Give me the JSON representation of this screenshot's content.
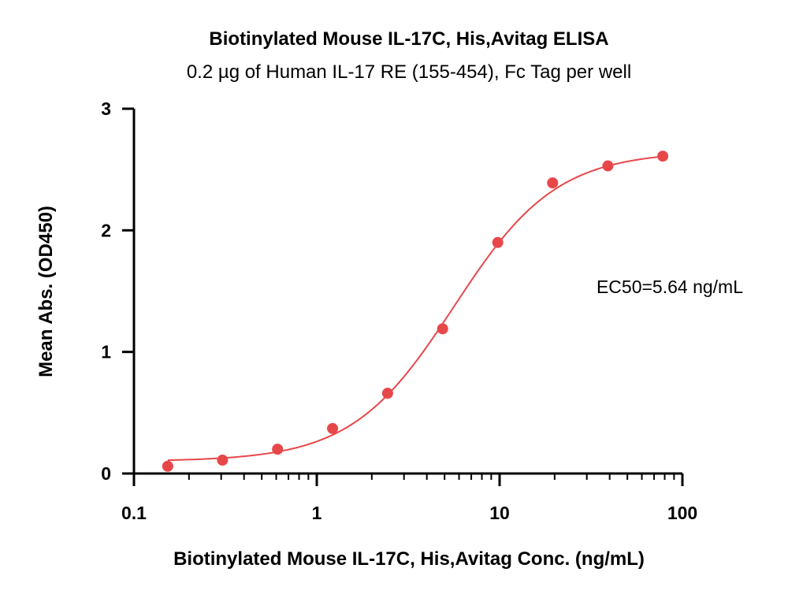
{
  "chart_data": {
    "type": "scatter",
    "title": "Biotinylated Mouse IL-17C, His,Avitag ELISA",
    "subtitle": "0.2 µg of Human IL-17 RE (155-454), Fc Tag per well",
    "xlabel": "Biotinylated Mouse IL-17C, His,Avitag Conc. (ng/mL)",
    "ylabel": "Mean Abs. (OD450)",
    "xscale": "log",
    "xlim": [
      0.1,
      100
    ],
    "ylim": [
      0,
      3
    ],
    "x_ticks": [
      0.1,
      1,
      10,
      100
    ],
    "x_tick_labels": [
      "0.1",
      "1",
      "10",
      "100"
    ],
    "y_ticks": [
      0,
      1,
      2,
      3
    ],
    "y_tick_labels": [
      "0",
      "1",
      "2",
      "3"
    ],
    "grid": false,
    "series": [
      {
        "color": "#e8474a",
        "x": [
          0.153,
          0.305,
          0.61,
          1.22,
          2.44,
          4.88,
          9.77,
          19.5,
          39.1,
          78.1
        ],
        "y": [
          0.06,
          0.11,
          0.2,
          0.37,
          0.66,
          1.19,
          1.9,
          2.39,
          2.53,
          2.61
        ]
      }
    ],
    "fit_curve": {
      "type": "4PL",
      "color": "#e8474a",
      "bottom": 0.1,
      "top": 2.65,
      "ec50": 5.64,
      "hill": 1.55
    },
    "annotation": "EC50=5.64 ng/mL"
  }
}
